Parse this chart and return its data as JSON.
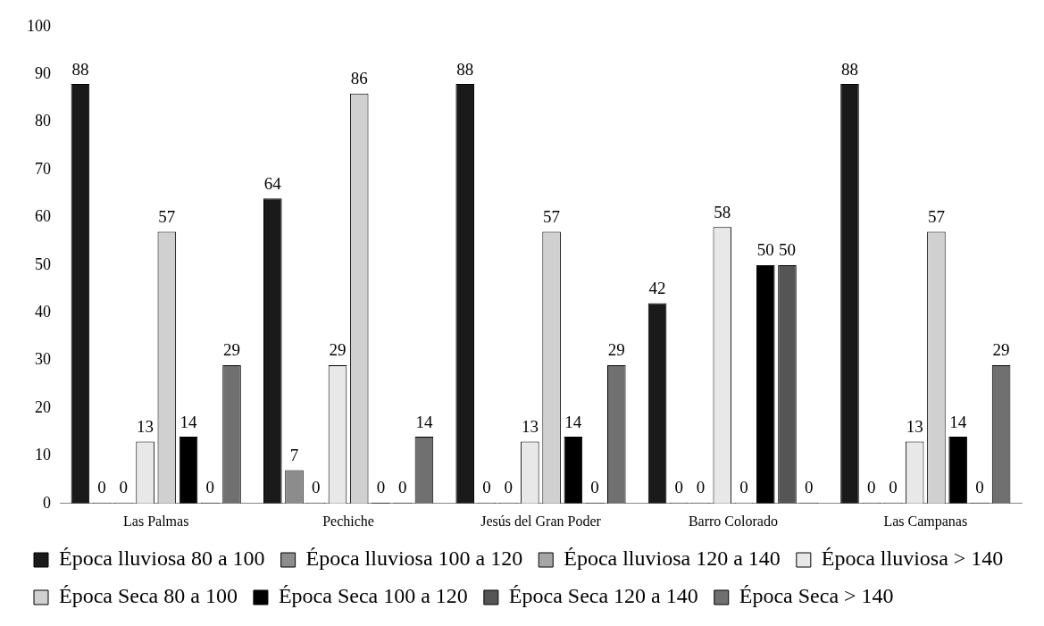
{
  "chart_data": {
    "type": "bar",
    "categories": [
      "Las Palmas",
      "Pechiche",
      "Jesús del Gran Poder",
      "Barro Colorado",
      "Las Campanas"
    ],
    "series": [
      {
        "name": "Época lluviosa 80 a 100",
        "color": "#1a1a1a",
        "values": [
          88,
          64,
          88,
          42,
          88
        ]
      },
      {
        "name": "Época lluviosa 100 a 120",
        "color": "#8c8c8c",
        "values": [
          0,
          7,
          0,
          0,
          0
        ]
      },
      {
        "name": "Época lluviosa 120 a 140",
        "color": "#a6a6a6",
        "values": [
          0,
          0,
          0,
          0,
          0
        ]
      },
      {
        "name": "Época lluviosa > 140",
        "color": "#e8e8e8",
        "values": [
          13,
          29,
          13,
          58,
          13
        ]
      },
      {
        "name": "Época Seca 80 a 100",
        "color": "#d0d0d0",
        "values": [
          57,
          86,
          57,
          0,
          57
        ]
      },
      {
        "name": "Época Seca 100 a 120",
        "color": "#000000",
        "values": [
          14,
          0,
          14,
          50,
          14
        ]
      },
      {
        "name": "Época Seca 120 a 140",
        "color": "#555555",
        "values": [
          0,
          0,
          0,
          50,
          0
        ]
      },
      {
        "name": "Época Seca > 140",
        "color": "#707070",
        "values": [
          29,
          14,
          29,
          0,
          29
        ]
      }
    ],
    "ylim": [
      0,
      100
    ],
    "yticks": [
      0,
      10,
      20,
      30,
      40,
      50,
      60,
      70,
      80,
      90,
      100
    ],
    "grid": false,
    "legend": "bottom",
    "data_labels": true
  }
}
